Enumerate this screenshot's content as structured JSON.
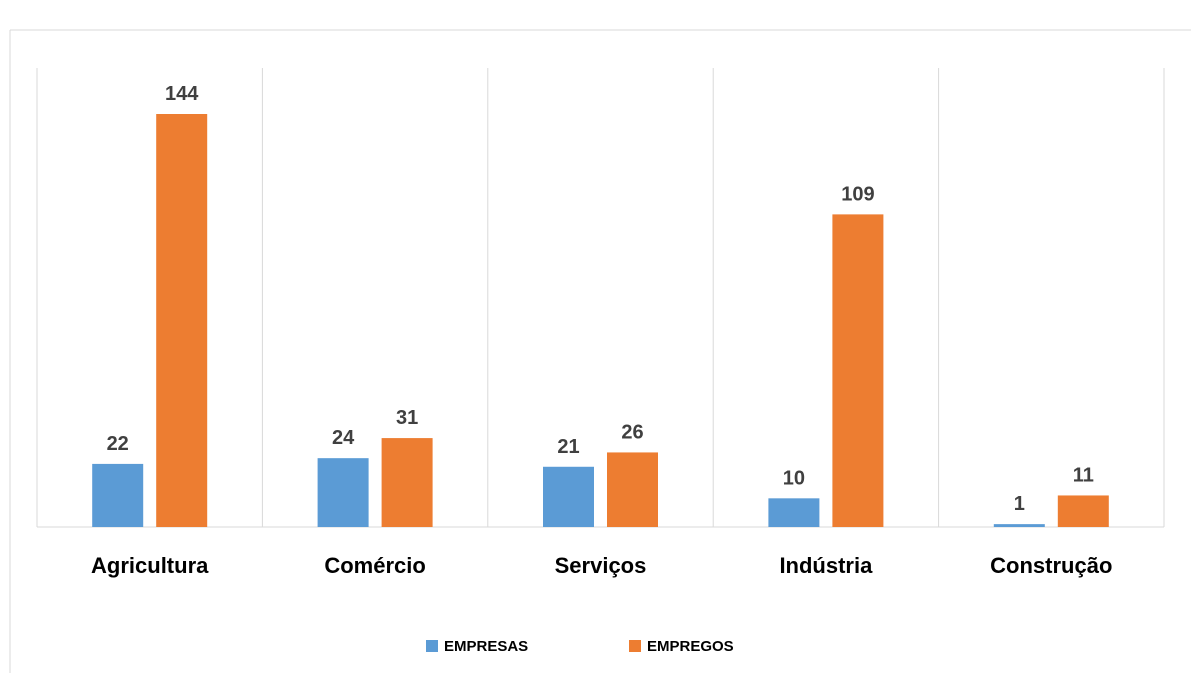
{
  "chart_data": {
    "type": "bar",
    "title": "",
    "categories": [
      "Agricultura",
      "Comércio",
      "Serviços",
      "Indústria",
      "Construção"
    ],
    "series": [
      {
        "name": "EMPRESAS",
        "values": [
          22,
          24,
          21,
          10,
          1
        ],
        "color": "#5B9BD5"
      },
      {
        "name": "EMPREGOS",
        "values": [
          144,
          31,
          26,
          109,
          11
        ],
        "color": "#ED7D31"
      }
    ],
    "ylim": [
      0,
      160
    ],
    "grid": "vertical-separators",
    "legend": "bottom",
    "data_labels": true
  }
}
